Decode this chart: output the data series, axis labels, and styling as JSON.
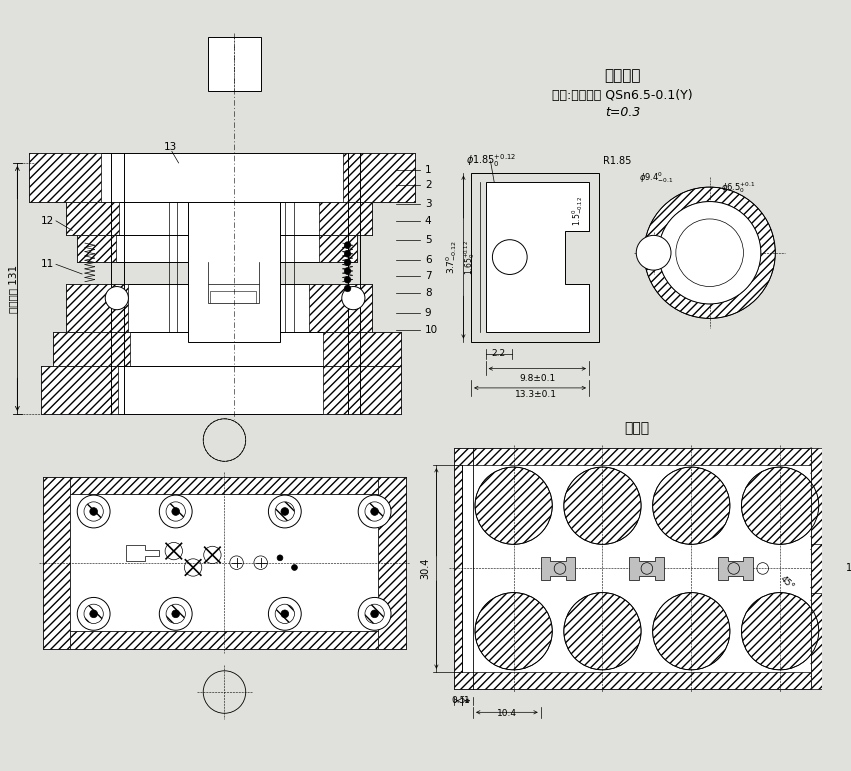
{
  "bg_color": "#e0e0dc",
  "title_text": "工件简图",
  "subtitle_text": "材料:锡青铜带 QSn6.5-0.1(Y)",
  "subtitle2_text": "t=0.3",
  "paiyangtu_text": "排样图",
  "dim_text": "闭合高度 131",
  "labels": [
    "1",
    "2",
    "3",
    "4",
    "5",
    "6",
    "7",
    "8",
    "9",
    "10",
    "11",
    "12",
    "13"
  ],
  "lw_thin": 0.4,
  "lw_med": 0.7,
  "lw_thick": 1.2
}
